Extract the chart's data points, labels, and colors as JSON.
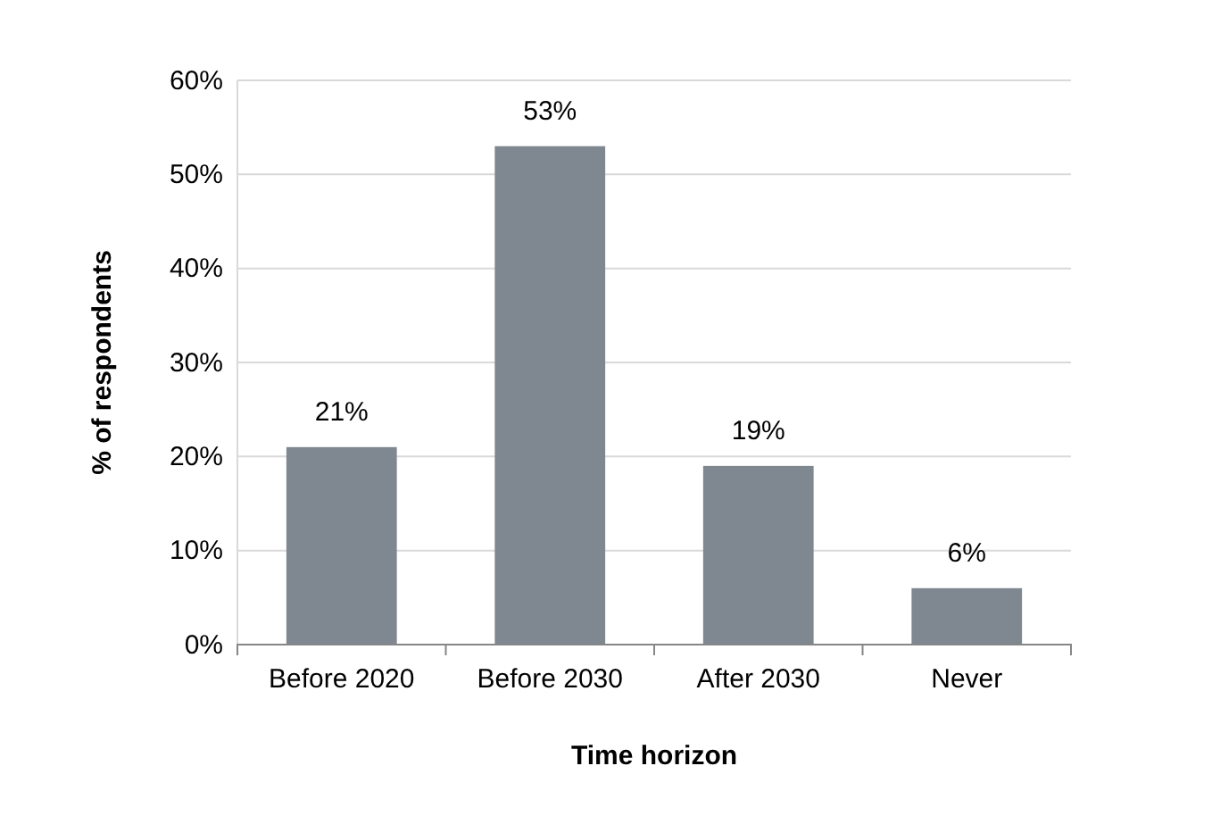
{
  "chart_data": {
    "type": "bar",
    "xlabel": "Time horizon",
    "ylabel": "% of respondents",
    "categories": [
      "Before 2020",
      "Before 2030",
      "After 2030",
      "Never"
    ],
    "values": [
      21,
      53,
      19,
      6
    ],
    "value_labels": [
      "21%",
      "53%",
      "19%",
      "6%"
    ],
    "color": "#7f8790",
    "ylim": [
      0,
      60
    ],
    "yticks": [
      {
        "value": 0,
        "label": "0%"
      },
      {
        "value": 10,
        "label": "10%"
      },
      {
        "value": 20,
        "label": "20%"
      },
      {
        "value": 30,
        "label": "30%"
      },
      {
        "value": 40,
        "label": "40%"
      },
      {
        "value": 50,
        "label": "50%"
      },
      {
        "value": 60,
        "label": "60%"
      }
    ],
    "grid": "y"
  }
}
